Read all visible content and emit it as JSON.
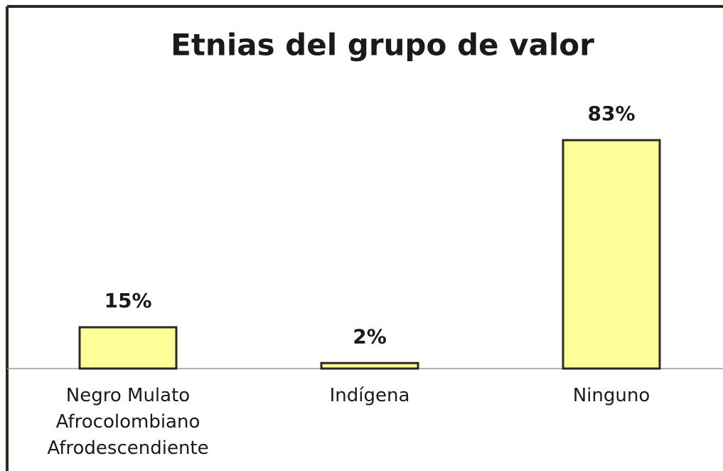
{
  "chart_data": {
    "type": "bar",
    "title": "Etnias del grupo de valor",
    "categories": [
      "Negro Mulato Afrocolombiano Afrodescendiente",
      "Indígena",
      "Ninguno"
    ],
    "values": [
      15,
      2,
      83
    ],
    "value_labels": [
      "15%",
      "2%",
      "83%"
    ],
    "color": "#ffff99"
  }
}
